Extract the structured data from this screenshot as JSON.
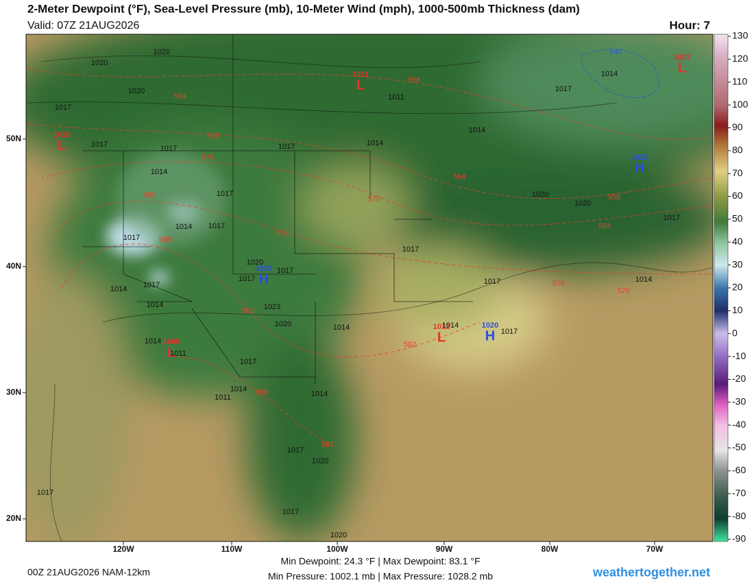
{
  "header": {
    "title": "2-Meter Dewpoint (°F), Sea-Level Pressure (mb), 10-Meter Wind (mph), 1000-500mb Thickness (dam)",
    "valid": "Valid: 07Z 21AUG2026",
    "hour": "Hour: 7"
  },
  "map": {
    "longitude_labels": [
      "120W",
      "110W",
      "100W",
      "90W",
      "80W",
      "70W"
    ],
    "latitude_labels": [
      "50N",
      "40N",
      "30N",
      "20N"
    ],
    "pressure_centers": [
      {
        "symbol": "L",
        "pressure": "1015"
      },
      {
        "symbol": "L",
        "pressure": "1011"
      },
      {
        "symbol": "L",
        "pressure": "1007"
      },
      {
        "symbol": "H",
        "pressure": "1022"
      },
      {
        "symbol": "H",
        "pressure": "1028"
      },
      {
        "symbol": "L",
        "pressure": "1009"
      },
      {
        "symbol": "L",
        "pressure": "1012"
      },
      {
        "symbol": "H",
        "pressure": "1020"
      }
    ],
    "thickness_labels": [
      564,
      558,
      570,
      576,
      564,
      570,
      582,
      558,
      564,
      588,
      582,
      576,
      576,
      588,
      582,
      588,
      582,
      540
    ],
    "isobar_labels": [
      1020,
      1020,
      1020,
      1017,
      1017,
      1017,
      1014,
      1017,
      1014,
      1011,
      1014,
      1017,
      1014,
      1017,
      1014,
      1017,
      1017,
      1020,
      1017,
      1017,
      1017,
      1014,
      1014,
      1023,
      1020,
      1014,
      1017,
      1020,
      1020,
      1017,
      1014,
      1017,
      1014,
      1017,
      1014,
      1011,
      1017,
      1014,
      1011,
      1014,
      1017,
      1020,
      1017,
      1017,
      1020
    ]
  },
  "colorbar": {
    "ticks": [
      130,
      120,
      110,
      100,
      90,
      80,
      70,
      60,
      50,
      40,
      30,
      20,
      10,
      0,
      -10,
      -20,
      -30,
      -40,
      -50,
      -60,
      -70,
      -80,
      -90
    ]
  },
  "footer": {
    "run": "00Z 21AUG2026 NAM-12km",
    "dewpoint_range": "Min Dewpoint:  24.3 °F | Max Dewpoint:  83.1 °F",
    "pressure_range": "Min Pressure: 1002.1 mb | Max Pressure: 1028.2 mb",
    "site": "weathertogether.net"
  }
}
